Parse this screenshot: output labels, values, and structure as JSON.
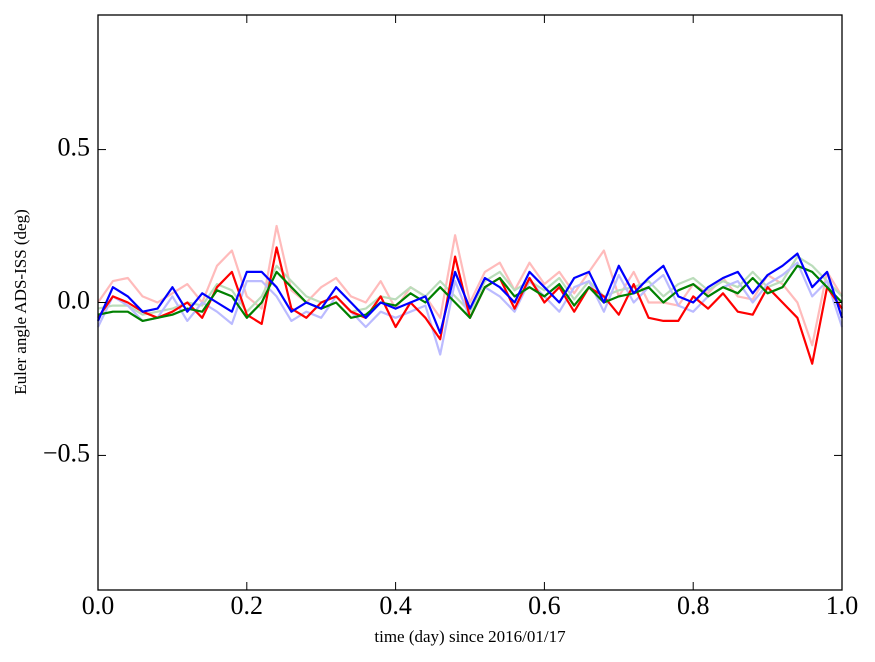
{
  "chart_data": {
    "type": "line",
    "xlabel": "time (day) since 2016/01/17",
    "ylabel": "Euler angle ADS-ISS (deg)",
    "x": [
      0,
      0.02,
      0.04,
      0.06,
      0.08,
      0.1,
      0.12,
      0.14,
      0.16,
      0.18,
      0.2,
      0.22,
      0.24,
      0.26,
      0.28,
      0.3,
      0.32,
      0.34,
      0.36,
      0.38,
      0.4,
      0.42,
      0.44,
      0.46,
      0.48,
      0.5,
      0.52,
      0.54,
      0.56,
      0.58,
      0.6,
      0.62,
      0.64,
      0.66,
      0.68,
      0.7,
      0.72,
      0.74,
      0.76,
      0.78,
      0.8,
      0.82,
      0.84,
      0.86,
      0.88,
      0.9,
      0.92,
      0.94,
      0.96,
      0.98,
      1.0
    ],
    "series": [
      {
        "color": "#ffbbbb",
        "values": [
          0.0,
          0.07,
          0.08,
          0.02,
          0.0,
          0.03,
          0.06,
          0.0,
          0.12,
          0.17,
          0.02,
          -0.02,
          0.25,
          0.04,
          0.0,
          0.05,
          0.08,
          0.02,
          0.0,
          0.07,
          -0.02,
          0.05,
          0.02,
          -0.05,
          0.22,
          0.0,
          0.1,
          0.13,
          0.04,
          0.13,
          0.06,
          0.1,
          0.03,
          0.1,
          0.17,
          0.02,
          0.1,
          0.0,
          0.0,
          -0.01,
          0.06,
          0.03,
          0.08,
          0.02,
          0.01,
          0.09,
          0.06,
          0.0,
          -0.14,
          0.1,
          0.02
        ]
      },
      {
        "color": "#bbddbb",
        "values": [
          -0.02,
          -0.01,
          -0.01,
          -0.04,
          -0.03,
          -0.02,
          0.0,
          -0.01,
          0.06,
          0.04,
          -0.03,
          0.02,
          0.12,
          0.07,
          0.02,
          0.0,
          0.02,
          -0.03,
          -0.02,
          0.02,
          0.01,
          0.05,
          0.02,
          0.07,
          0.02,
          -0.03,
          0.07,
          0.1,
          0.04,
          0.07,
          0.04,
          0.08,
          0.01,
          0.07,
          0.02,
          0.04,
          0.05,
          0.07,
          0.02,
          0.06,
          0.08,
          0.04,
          0.07,
          0.05,
          0.1,
          0.05,
          0.07,
          0.15,
          0.12,
          0.07,
          0.02
        ]
      },
      {
        "color": "#bbbbff",
        "values": [
          -0.08,
          0.02,
          -0.01,
          -0.06,
          -0.05,
          0.02,
          -0.06,
          0.0,
          -0.03,
          -0.07,
          0.07,
          0.07,
          0.02,
          -0.06,
          -0.03,
          -0.05,
          0.02,
          -0.03,
          -0.08,
          -0.03,
          -0.05,
          -0.03,
          -0.01,
          -0.17,
          0.07,
          -0.05,
          0.05,
          0.02,
          -0.03,
          0.07,
          0.02,
          -0.03,
          0.05,
          0.07,
          -0.03,
          0.09,
          0.0,
          0.05,
          0.09,
          -0.01,
          -0.03,
          0.02,
          0.05,
          0.07,
          0.0,
          0.06,
          0.09,
          0.13,
          0.02,
          0.07,
          -0.08
        ]
      },
      {
        "color": "#ff0000",
        "values": [
          -0.05,
          0.02,
          0.0,
          -0.03,
          -0.05,
          -0.03,
          0.0,
          -0.05,
          0.05,
          0.1,
          -0.04,
          -0.07,
          0.18,
          -0.02,
          -0.05,
          0.0,
          0.02,
          -0.03,
          -0.05,
          0.02,
          -0.08,
          0.0,
          -0.05,
          -0.12,
          0.15,
          -0.05,
          0.05,
          0.08,
          -0.02,
          0.08,
          0.0,
          0.05,
          -0.03,
          0.05,
          0.02,
          -0.04,
          0.06,
          -0.05,
          -0.06,
          -0.06,
          0.02,
          -0.02,
          0.03,
          -0.03,
          -0.04,
          0.05,
          0.0,
          -0.05,
          -0.2,
          0.05,
          -0.02
        ]
      },
      {
        "color": "#008000",
        "values": [
          -0.04,
          -0.03,
          -0.03,
          -0.06,
          -0.05,
          -0.04,
          -0.02,
          -0.03,
          0.04,
          0.02,
          -0.05,
          0.0,
          0.1,
          0.05,
          0.0,
          -0.02,
          0.0,
          -0.05,
          -0.04,
          0.0,
          -0.01,
          0.03,
          0.0,
          0.05,
          0.0,
          -0.05,
          0.05,
          0.08,
          0.02,
          0.05,
          0.02,
          0.06,
          -0.01,
          0.05,
          0.0,
          0.02,
          0.03,
          0.05,
          0.0,
          0.04,
          0.06,
          0.02,
          0.05,
          0.03,
          0.08,
          0.03,
          0.05,
          0.12,
          0.1,
          0.05,
          0.0
        ]
      },
      {
        "color": "#0000ff",
        "values": [
          -0.06,
          0.05,
          0.02,
          -0.03,
          -0.02,
          0.05,
          -0.03,
          0.03,
          0.0,
          -0.03,
          0.1,
          0.1,
          0.05,
          -0.03,
          0.0,
          -0.02,
          0.05,
          0.0,
          -0.05,
          0.0,
          -0.02,
          0.0,
          0.02,
          -0.1,
          0.1,
          -0.02,
          0.08,
          0.05,
          0.0,
          0.1,
          0.05,
          0.0,
          0.08,
          0.1,
          0.0,
          0.12,
          0.03,
          0.08,
          0.12,
          0.02,
          0.0,
          0.05,
          0.08,
          0.1,
          0.03,
          0.09,
          0.12,
          0.16,
          0.05,
          0.1,
          -0.05
        ]
      }
    ],
    "xlim": [
      0,
      1
    ],
    "xticks": [
      {
        "value": 0,
        "label": "0.0"
      },
      0.2,
      0.4,
      0.6,
      0.8,
      {
        "value": 1,
        "label": "1.0"
      }
    ],
    "ylim": [
      -0.94,
      0.94
    ],
    "yticks": [
      {
        "value": -0.5,
        "label": "−0.5"
      },
      {
        "value": 0,
        "label": "0.0"
      },
      0.5
    ]
  }
}
